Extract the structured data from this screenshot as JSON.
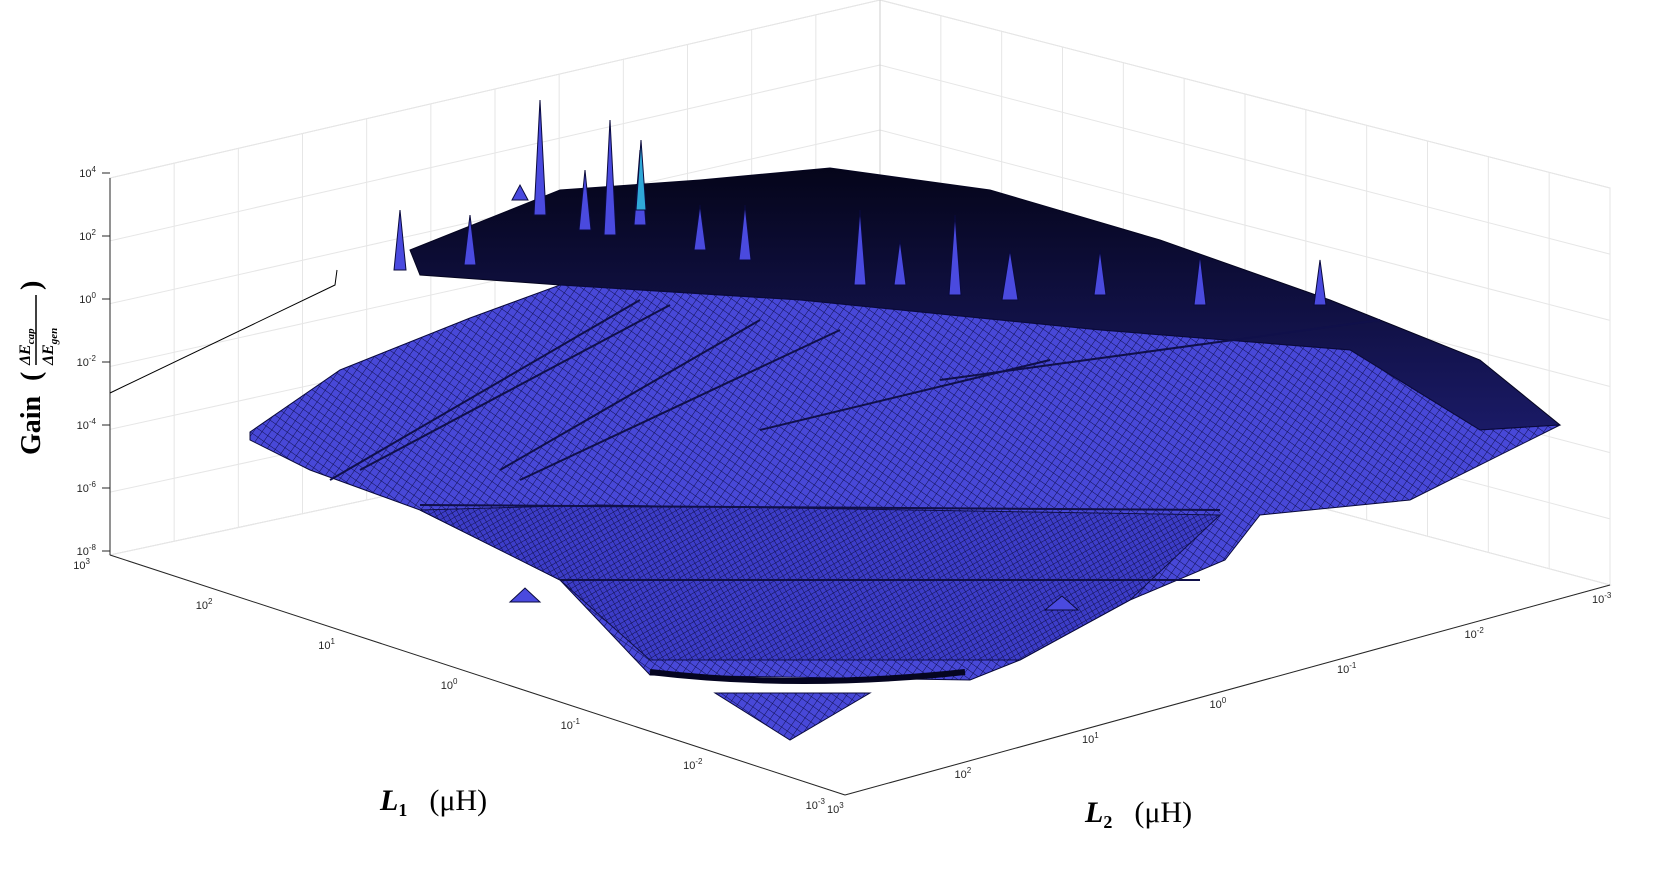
{
  "chart_data": {
    "type": "surface",
    "zlabel": "Gain",
    "zlabel_fraction": {
      "numerator": "ΔE",
      "numerator_sub": "cap",
      "denominator": "ΔE",
      "denominator_sub": "gen"
    },
    "x_axis": {
      "name": "L",
      "sub": "1",
      "unit": "(μH)",
      "scale": "log",
      "range": [
        0.001,
        1000
      ],
      "ticks": [
        "10-3",
        "10-2",
        "10-1",
        "100",
        "101",
        "102",
        "103"
      ]
    },
    "y_axis": {
      "name": "L",
      "sub": "2",
      "unit": "(μH)",
      "scale": "log",
      "range": [
        0.001,
        1000
      ],
      "ticks": [
        "103",
        "102",
        "101",
        "100",
        "10-1",
        "10-2",
        "10-3"
      ]
    },
    "z_axis": {
      "scale": "log",
      "range": [
        1e-08,
        10000.0
      ],
      "ticks": [
        "10-8",
        "10-6",
        "10-4",
        "10-2",
        "100",
        "102",
        "104"
      ]
    },
    "grid": true,
    "surface_color": "#4a4adf",
    "edge_color": "#0a0a3c",
    "highlight_color": "#2fa8d8",
    "surface_description_values": {
      "peak_gain": 10000,
      "min_gain": 1e-07
    }
  }
}
